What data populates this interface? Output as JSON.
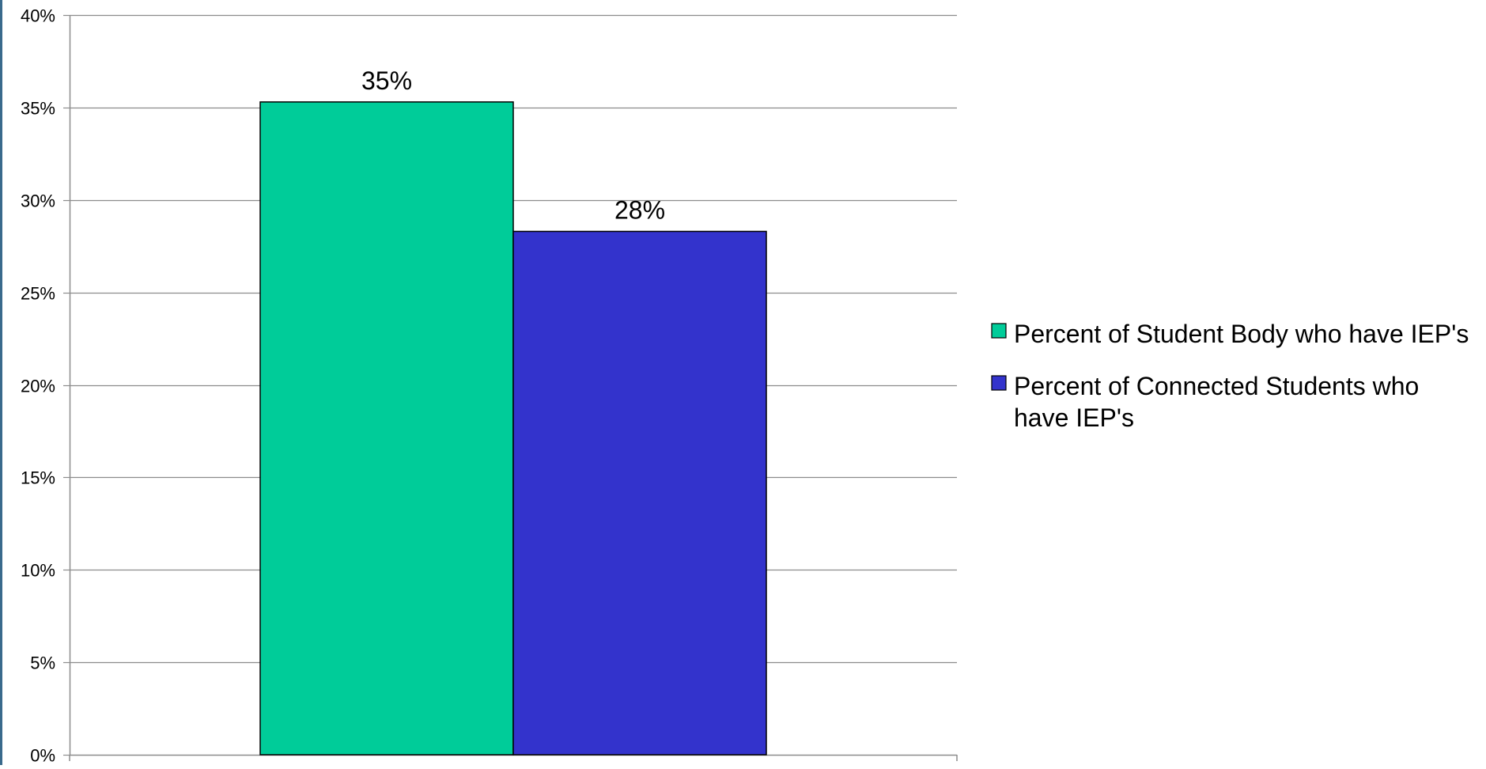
{
  "chart_data": {
    "type": "bar",
    "title": "",
    "xlabel": "",
    "ylabel": "",
    "ylim": [
      0,
      40
    ],
    "ytick_step": 5,
    "ytick_labels": [
      "0%",
      "5%",
      "10%",
      "15%",
      "20%",
      "25%",
      "30%",
      "35%",
      "40%"
    ],
    "grid": true,
    "legend_position": "right",
    "series": [
      {
        "name": "Percent of Student Body who have IEP's",
        "value": 35.3,
        "label": "35%",
        "color": "#00cc99"
      },
      {
        "name": "Percent of Connected Students who have IEP's",
        "value": 28.3,
        "label": "28%",
        "color": "#3333cc"
      }
    ]
  },
  "colors": {
    "grid": "#8c8c8c",
    "axis": "#8c8c8c",
    "bar_border": "#000000",
    "text": "#000000",
    "left_edge": "#3a6a8c"
  }
}
